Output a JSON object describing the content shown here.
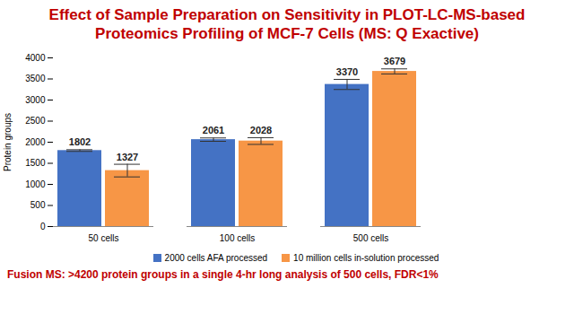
{
  "chart_data": {
    "type": "bar",
    "title": [
      "Effect of Sample Preparation on Sensitivity in PLOT-LC-MS-based",
      "Proteomics Profiling of MCF-7 Cells (MS: Q Exactive)"
    ],
    "y_label": "Protein groups",
    "categories": [
      "50 cells",
      "100 cells",
      "500 cells"
    ],
    "series": [
      {
        "name": "2000 cells AFA processed",
        "color": "#4472c4",
        "values": [
          1802,
          2061,
          3370
        ],
        "errors": [
          20,
          40,
          120
        ]
      },
      {
        "name": "10 million cells in-solution processed",
        "color": "#f79646",
        "values": [
          1327,
          2028,
          3679
        ],
        "errors": [
          150,
          80,
          60
        ]
      }
    ],
    "ylim": [
      0,
      4000
    ],
    "yticks": [
      0,
      500,
      1000,
      1500,
      2000,
      2500,
      3000,
      3500,
      4000
    ],
    "grid": false,
    "data_labels": true,
    "legend": "bottom",
    "annotation": "Fusion MS: >4200 protein groups in a single 4-hr long analysis of 500 cells, FDR<1%"
  }
}
